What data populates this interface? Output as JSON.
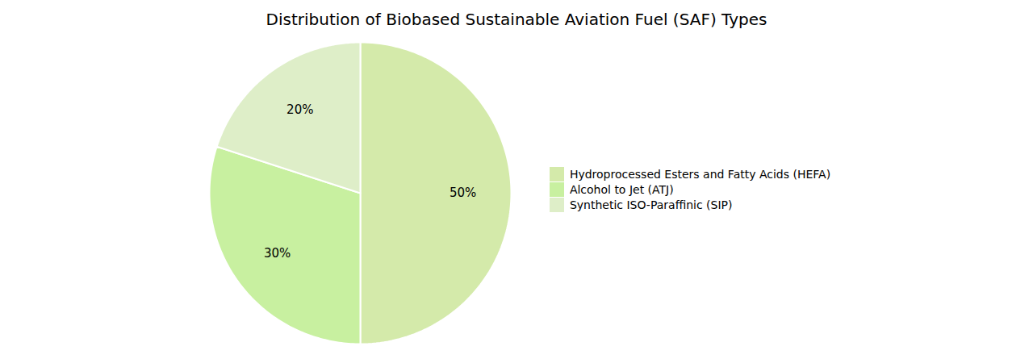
{
  "chart_data": {
    "type": "pie",
    "title": "Distribution of Biobased Sustainable Aviation Fuel (SAF) Types",
    "categories": [
      "Hydroprocessed Esters and Fatty Acids (HEFA)",
      "Alcohol to Jet (ATJ)",
      "Synthetic ISO-Paraffinic (SIP)"
    ],
    "values": [
      50,
      30,
      20
    ],
    "value_labels": [
      "50%",
      "30%",
      "20%"
    ],
    "colors": [
      "#d4eaaa",
      "#c8f0a0",
      "#deeec8"
    ],
    "data_labels": true,
    "legend": "right"
  }
}
